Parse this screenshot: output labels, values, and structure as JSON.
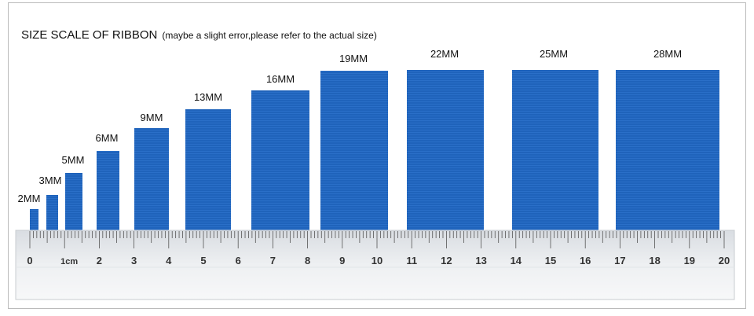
{
  "header": {
    "title": "SIZE SCALE OF RIBBON",
    "note": "(maybe a slight error,please refer to the actual size)"
  },
  "ribbons": [
    "2MM",
    "3MM",
    "5MM",
    "6MM",
    "9MM",
    "13MM",
    "16MM",
    "19MM",
    "22MM",
    "25MM",
    "28MM"
  ],
  "ruler": {
    "labels": [
      "0",
      "1cm",
      "2",
      "3",
      "4",
      "5",
      "6",
      "7",
      "8",
      "9",
      "10",
      "11",
      "12",
      "13",
      "14",
      "15",
      "16",
      "17",
      "18",
      "19",
      "20"
    ]
  }
}
